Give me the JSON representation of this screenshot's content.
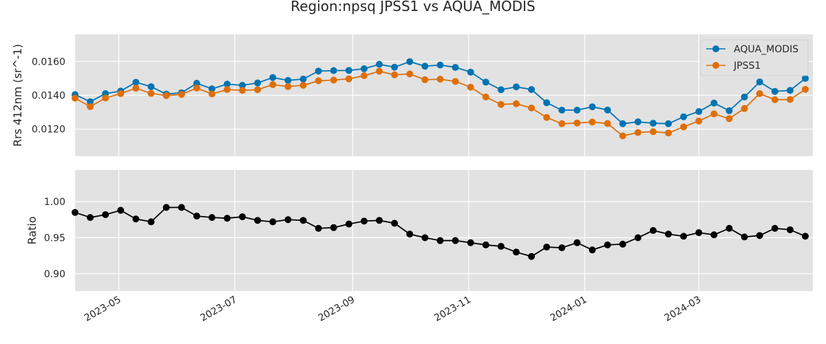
{
  "chart_data": {
    "type": "line",
    "title": "Region:npsq JPSS1 vs AQUA_MODIS",
    "x_tick_labels": [
      "2023-05",
      "2023-07",
      "2023-09",
      "2023-11",
      "2024-01",
      "2024-03"
    ],
    "x_tick_dates": [
      "2023-05-01",
      "2023-07-01",
      "2023-09-01",
      "2023-11-01",
      "2024-01-01",
      "2024-03-01"
    ],
    "xlim": [
      "2023-04-08",
      "2024-04-30"
    ],
    "x": [
      "2023-04-08",
      "2023-04-16",
      "2023-04-24",
      "2023-05-02",
      "2023-05-10",
      "2023-05-18",
      "2023-05-26",
      "2023-06-03",
      "2023-06-11",
      "2023-06-19",
      "2023-06-27",
      "2023-07-05",
      "2023-07-13",
      "2023-07-21",
      "2023-07-29",
      "2023-08-06",
      "2023-08-14",
      "2023-08-22",
      "2023-08-30",
      "2023-09-07",
      "2023-09-15",
      "2023-09-23",
      "2023-10-01",
      "2023-10-09",
      "2023-10-17",
      "2023-10-25",
      "2023-11-02",
      "2023-11-10",
      "2023-11-18",
      "2023-11-26",
      "2023-12-04",
      "2023-12-12",
      "2023-12-20",
      "2023-12-28",
      "2024-01-05",
      "2024-01-13",
      "2024-01-21",
      "2024-01-29",
      "2024-02-06",
      "2024-02-14",
      "2024-02-22",
      "2024-03-01",
      "2024-03-09",
      "2024-03-17",
      "2024-03-25",
      "2024-04-02",
      "2024-04-10",
      "2024-04-18",
      "2024-04-26"
    ],
    "panels": [
      {
        "ylabel": "Rrs 412nm (sr^-1)",
        "ylim": [
          0.0104,
          0.0176
        ],
        "y_ticks": [
          0.012,
          0.014,
          0.016
        ],
        "y_tick_labels": [
          "0.0120",
          "0.0140",
          "0.0160"
        ],
        "legend": "top-right",
        "series": [
          {
            "name": "AQUA_MODIS",
            "color": "#0173b2",
            "values": [
              0.01404,
              0.01362,
              0.0141,
              0.01425,
              0.01477,
              0.01451,
              0.01407,
              0.01415,
              0.01471,
              0.01438,
              0.01466,
              0.01459,
              0.01473,
              0.01505,
              0.01488,
              0.01496,
              0.01543,
              0.01546,
              0.01547,
              0.01557,
              0.01583,
              0.01566,
              0.01599,
              0.01572,
              0.01579,
              0.01565,
              0.01537,
              0.01478,
              0.01433,
              0.0145,
              0.01434,
              0.01356,
              0.01312,
              0.01312,
              0.01332,
              0.01313,
              0.01232,
              0.01243,
              0.01235,
              0.01232,
              0.01273,
              0.01304,
              0.01354,
              0.01309,
              0.0139,
              0.01479,
              0.01423,
              0.01429,
              0.015
            ]
          },
          {
            "name": "JPSS1",
            "color": "#de6f09",
            "values": [
              0.01383,
              0.01333,
              0.01384,
              0.0141,
              0.01442,
              0.01411,
              0.01398,
              0.01405,
              0.01443,
              0.01408,
              0.01434,
              0.01429,
              0.01433,
              0.01463,
              0.01452,
              0.01459,
              0.01486,
              0.0149,
              0.01497,
              0.01516,
              0.01542,
              0.01521,
              0.01526,
              0.01492,
              0.01495,
              0.01482,
              0.01448,
              0.0139,
              0.01346,
              0.0135,
              0.01325,
              0.01269,
              0.01232,
              0.01236,
              0.01242,
              0.01233,
              0.0116,
              0.0118,
              0.01185,
              0.01177,
              0.01213,
              0.01248,
              0.0129,
              0.01262,
              0.01322,
              0.0141,
              0.01374,
              0.01375,
              0.01435
            ]
          }
        ]
      },
      {
        "ylabel": "Ratio",
        "ylim": [
          0.876,
          1.044
        ],
        "y_ticks": [
          0.9,
          0.95,
          1.0
        ],
        "y_tick_labels": [
          "0.90",
          "0.95",
          "1.00"
        ],
        "series": [
          {
            "color": "#000000",
            "values": [
              0.985,
              0.978,
              0.982,
              0.988,
              0.976,
              0.972,
              0.992,
              0.992,
              0.98,
              0.978,
              0.977,
              0.979,
              0.974,
              0.972,
              0.975,
              0.974,
              0.963,
              0.964,
              0.969,
              0.973,
              0.974,
              0.97,
              0.955,
              0.95,
              0.946,
              0.946,
              0.943,
              0.94,
              0.938,
              0.93,
              0.924,
              0.937,
              0.936,
              0.943,
              0.933,
              0.94,
              0.941,
              0.95,
              0.96,
              0.955,
              0.952,
              0.957,
              0.954,
              0.963,
              0.951,
              0.953,
              0.963,
              0.961,
              0.952
            ]
          }
        ]
      }
    ]
  }
}
